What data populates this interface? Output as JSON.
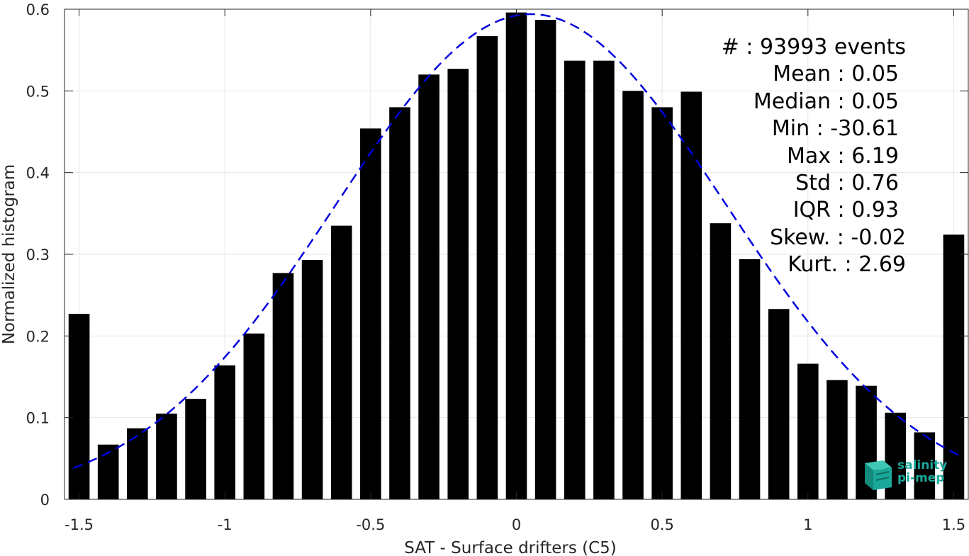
{
  "chart_data": {
    "type": "bar",
    "xlabel": "SAT - Surface drifters (C5)",
    "ylabel": "Normalized histogram",
    "xlim": [
      -1.55,
      1.55
    ],
    "ylim": [
      0,
      0.6
    ],
    "xticks": [
      -1.5,
      -1,
      -0.5,
      0,
      0.5,
      1,
      1.5
    ],
    "xtick_labels": [
      "-1.5",
      "-1",
      "-0.5",
      "0",
      "0.5",
      "1",
      "1.5"
    ],
    "yticks": [
      0,
      0.1,
      0.2,
      0.3,
      0.4,
      0.5,
      0.6
    ],
    "ytick_labels": [
      "0",
      "0.1",
      "0.2",
      "0.3",
      "0.4",
      "0.5",
      "0.6"
    ],
    "grid": true,
    "bar_color": "#000000",
    "bins": [
      -1.5,
      -1.4,
      -1.3,
      -1.2,
      -1.1,
      -1.0,
      -0.9,
      -0.8,
      -0.7,
      -0.6,
      -0.5,
      -0.4,
      -0.3,
      -0.2,
      -0.1,
      0.0,
      0.1,
      0.2,
      0.3,
      0.4,
      0.5,
      0.6,
      0.7,
      0.8,
      0.9,
      1.0,
      1.1,
      1.2,
      1.3,
      1.4,
      1.5
    ],
    "values": [
      0.227,
      0.067,
      0.087,
      0.105,
      0.123,
      0.164,
      0.203,
      0.277,
      0.293,
      0.335,
      0.454,
      0.48,
      0.52,
      0.527,
      0.567,
      0.596,
      0.587,
      0.537,
      0.537,
      0.5,
      0.48,
      0.499,
      0.338,
      0.294,
      0.233,
      0.166,
      0.146,
      0.139,
      0.106,
      0.082,
      0.324
    ],
    "fit_curve": {
      "style": "dashed",
      "color": "#0000dd",
      "x_range": [
        -1.52,
        1.52
      ],
      "mean": 0.05,
      "std": 0.67,
      "peak": 0.594
    },
    "annotations": [
      "#  : 93993 events",
      "Mean : 0.05",
      "Median : 0.05",
      "Min : -30.61",
      "Max : 6.19",
      "Std : 0.76",
      "IQR : 0.93",
      "Skew. : -0.02",
      "Kurt. : 2.69"
    ]
  },
  "logo": {
    "line1": "salinity",
    "line2": "pi-mep",
    "color": "#1aa89a"
  }
}
